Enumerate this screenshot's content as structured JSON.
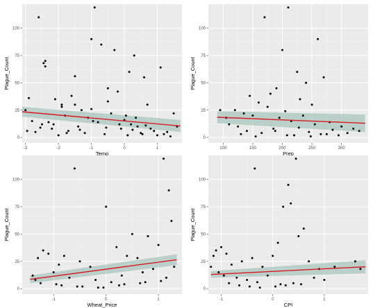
{
  "chart_data": [
    {
      "type": "scatter",
      "xlabel": "Temp",
      "ylabel": "Plague_Count",
      "xlim": [
        -3.1,
        1.75
      ],
      "ylim": [
        -5,
        122
      ],
      "xticks": [
        -3,
        -2,
        -1,
        0,
        1
      ],
      "yticks": [
        0,
        25,
        50,
        75,
        100
      ],
      "grid": true,
      "fit": {
        "method": "linear",
        "x": [
          -3.1,
          1.7
        ],
        "y": [
          23.5,
          10.5
        ],
        "ci_halfwidth": [
          4.5,
          5.5
        ]
      },
      "x": [
        -2.6,
        -2.9,
        -2.4,
        -2.45,
        -2.4,
        -2.1,
        -1.9,
        -0.9,
        -1.0,
        -0.7,
        -0.3,
        0.15,
        0.3,
        0.6,
        1.1,
        -1.5,
        -1.6,
        -0.5,
        -0.2,
        0.7,
        1.5,
        -2.8,
        -2.5,
        -2.2,
        -1.8,
        -1.3,
        -1.1,
        -0.8,
        -0.4,
        0.0,
        0.2,
        0.4,
        0.8,
        1.3,
        -2.7,
        -2.0,
        -1.7,
        -1.4,
        -1.2,
        -0.6,
        -0.1,
        0.1,
        0.5,
        0.9,
        1.2,
        -2.3,
        -1.9,
        -1.5,
        -1.0,
        -0.5,
        0.05,
        0.35,
        0.65,
        -2.95,
        -2.55,
        -2.15,
        -1.75,
        -1.35,
        -0.95,
        -0.55,
        -0.15,
        0.25,
        0.55,
        1.0,
        1.4,
        -3.0,
        1.6
      ],
      "y": [
        110,
        36,
        70,
        68,
        65,
        35,
        30,
        119,
        90,
        85,
        80,
        60,
        75,
        55,
        64,
        56,
        38,
        45,
        42,
        30,
        22,
        15,
        12,
        8,
        20,
        25,
        18,
        14,
        22,
        16,
        12,
        10,
        8,
        5,
        5,
        2,
        6,
        10,
        4,
        3,
        8,
        2,
        4,
        6,
        3,
        14,
        28,
        30,
        26,
        33,
        20,
        18,
        11,
        6,
        9,
        12,
        4,
        7,
        15,
        9,
        12,
        7,
        3,
        2,
        1,
        25,
        10
      ]
    },
    {
      "type": "scatter",
      "xlabel": "Prep",
      "ylabel": "Plague_Count",
      "xlim": [
        75,
        345
      ],
      "ylim": [
        -5,
        122
      ],
      "xticks": [
        100,
        150,
        200,
        250,
        300
      ],
      "yticks": [
        0,
        25,
        50,
        75,
        100
      ],
      "grid": true,
      "fit": {
        "method": "linear",
        "x": [
          90,
          340
        ],
        "y": [
          18.5,
          13
        ],
        "ci_halfwidth": [
          5.5,
          8
        ]
      },
      "x": [
        170,
        260,
        210,
        200,
        225,
        180,
        190,
        240,
        270,
        145,
        160,
        230,
        250,
        120,
        135,
        150,
        175,
        195,
        205,
        215,
        235,
        255,
        280,
        300,
        320,
        330,
        95,
        105,
        125,
        140,
        165,
        185,
        220,
        245,
        265,
        285,
        310,
        110,
        130,
        155,
        188,
        208,
        228,
        248,
        275,
        295
      ],
      "y": [
        110,
        90,
        119,
        80,
        60,
        40,
        45,
        50,
        55,
        38,
        32,
        35,
        30,
        25,
        22,
        20,
        28,
        18,
        24,
        15,
        20,
        12,
        14,
        10,
        8,
        6,
        25,
        18,
        10,
        6,
        4,
        8,
        2,
        5,
        3,
        7,
        4,
        12,
        3,
        1,
        6,
        2,
        9,
        1,
        3,
        2
      ]
    },
    {
      "type": "scatter",
      "xlabel": "Wheat_Price",
      "ylabel": "Plague_Count",
      "xlim": [
        -1.6,
        1.45
      ],
      "ylim": [
        -5,
        122
      ],
      "xticks": [
        -1,
        0,
        1
      ],
      "yticks": [
        0,
        25,
        50,
        75,
        100
      ],
      "grid": true,
      "fit": {
        "method": "linear",
        "x": [
          -1.45,
          1.35
        ],
        "y": [
          8.5,
          26.5
        ],
        "ci_halfwidth": [
          3.5,
          5
        ]
      },
      "x": [
        -0.6,
        1.1,
        1.2,
        1.25,
        0.0,
        0.5,
        0.8,
        -0.8,
        -1.2,
        -1.3,
        -1.1,
        -0.9,
        -0.5,
        -0.3,
        0.2,
        0.4,
        0.6,
        0.9,
        1.0,
        -1.4,
        -1.0,
        -0.7,
        -0.2,
        0.1,
        0.3,
        0.7,
        1.3,
        -1.25,
        -0.85,
        -0.45,
        -0.05,
        0.35,
        0.75,
        1.15,
        -1.35,
        -0.95,
        -0.55,
        -0.15,
        0.25,
        0.65,
        1.05
      ],
      "y": [
        110,
        119,
        90,
        62,
        75,
        50,
        48,
        30,
        35,
        28,
        32,
        22,
        25,
        20,
        38,
        30,
        28,
        18,
        40,
        12,
        15,
        10,
        8,
        6,
        12,
        15,
        20,
        5,
        3,
        2,
        1,
        4,
        6,
        10,
        8,
        4,
        2,
        1,
        3,
        5,
        7
      ]
    },
    {
      "type": "scatter",
      "xlabel": "CPI",
      "ylabel": "Plague_Count",
      "xlim": [
        -1.25,
        1.85
      ],
      "ylim": [
        -5,
        122
      ],
      "xticks": [
        -1,
        0,
        1
      ],
      "yticks": [
        0,
        25,
        50,
        75,
        100
      ],
      "grid": true,
      "fit": {
        "method": "linear",
        "x": [
          -1.2,
          1.8
        ],
        "y": [
          13,
          20
        ],
        "ci_halfwidth": [
          3,
          6
        ]
      },
      "x": [
        -0.35,
        0.45,
        0.3,
        0.35,
        0.2,
        0.6,
        -1.1,
        -1.15,
        -1.0,
        -0.9,
        -0.8,
        -0.6,
        -0.4,
        -0.2,
        0.0,
        0.1,
        0.5,
        0.7,
        0.9,
        1.2,
        1.6,
        1.7,
        -1.05,
        -0.95,
        -0.7,
        -0.5,
        -0.3,
        -0.1,
        0.15,
        0.4,
        0.8,
        1.0,
        -1.2,
        -0.85,
        -0.65,
        -0.45,
        -0.25,
        0.05,
        0.25,
        0.55
      ],
      "y": [
        110,
        119,
        95,
        78,
        75,
        55,
        35,
        30,
        38,
        32,
        22,
        25,
        28,
        20,
        30,
        42,
        48,
        25,
        18,
        20,
        25,
        18,
        15,
        12,
        10,
        8,
        6,
        12,
        4,
        5,
        10,
        8,
        20,
        5,
        3,
        2,
        1,
        2,
        3,
        4
      ]
    }
  ]
}
